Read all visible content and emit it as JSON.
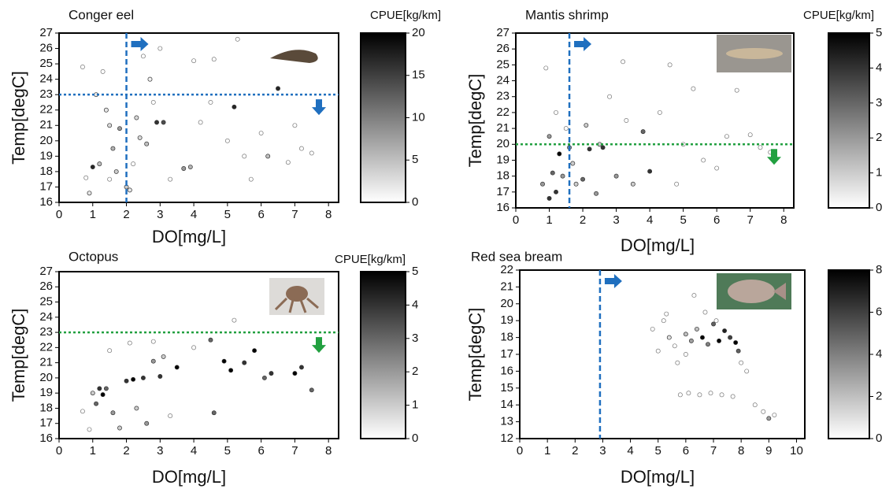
{
  "chart_data": [
    {
      "type": "scatter",
      "title": "Conger eel",
      "xlabel": "DO[mg/L]",
      "ylabel": "Temp[degC]",
      "colorbar_label": "CPUE[kg/km]",
      "xlim": [
        0,
        8.3
      ],
      "xticks": [
        0,
        1,
        2,
        3,
        4,
        5,
        6,
        7,
        8
      ],
      "ylim": [
        16,
        27
      ],
      "yticks": [
        16,
        17,
        18,
        19,
        20,
        21,
        22,
        23,
        24,
        25,
        26,
        27
      ],
      "clim": [
        0,
        20
      ],
      "cticks": [
        0,
        5,
        10,
        15,
        20
      ],
      "thresholds": [
        {
          "axis": "x",
          "value": 2,
          "color": "#1f6fbf"
        },
        {
          "axis": "y",
          "value": 23,
          "color": "#1f6fbf"
        }
      ],
      "x": [
        0.8,
        1.0,
        1.2,
        1.1,
        1.3,
        1.5,
        1.6,
        1.8,
        2.0,
        2.1,
        2.2,
        2.3,
        2.5,
        2.6,
        2.8,
        2.9,
        3.1,
        3.3,
        3.7,
        3.9,
        4.0,
        4.2,
        4.5,
        4.6,
        5.0,
        5.2,
        5.5,
        5.7,
        6.0,
        6.2,
        6.5,
        6.8,
        7.0,
        7.2,
        7.5,
        0.9,
        1.5,
        2.4,
        3.0,
        5.3,
        1.4,
        1.7,
        0.7,
        2.7
      ],
      "y": [
        17.6,
        18.3,
        18.5,
        23.0,
        24.5,
        21.0,
        19.5,
        20.8,
        17.0,
        16.8,
        18.5,
        21.5,
        25.5,
        19.8,
        22.5,
        21.2,
        21.2,
        17.5,
        18.2,
        18.3,
        25.2,
        21.2,
        22.5,
        25.3,
        20.0,
        22.2,
        19.0,
        17.5,
        20.5,
        19.0,
        23.4,
        18.6,
        21.0,
        19.5,
        19.2,
        16.6,
        17.5,
        20.2,
        26.0,
        26.6,
        22.0,
        18.0,
        24.8,
        24.0
      ],
      "cpue": [
        0,
        17,
        5,
        2,
        0,
        3,
        6,
        8,
        4,
        2,
        0,
        3,
        0,
        5,
        0,
        16,
        14,
        0,
        8,
        6,
        0,
        0,
        0,
        0,
        0,
        17,
        0,
        0,
        0,
        5,
        17,
        0,
        0,
        0,
        0,
        2,
        0,
        3,
        0,
        0,
        2,
        4,
        0,
        1
      ]
    },
    {
      "type": "scatter",
      "title": "Mantis shrimp",
      "xlabel": "DO[mg/L]",
      "ylabel": "Temp[degC]",
      "colorbar_label": "CPUE[kg/km]",
      "xlim": [
        0,
        8.3
      ],
      "xticks": [
        0,
        1,
        2,
        3,
        4,
        5,
        6,
        7,
        8
      ],
      "ylim": [
        16,
        27
      ],
      "yticks": [
        16,
        17,
        18,
        19,
        20,
        21,
        22,
        23,
        24,
        25,
        26,
        27
      ],
      "clim": [
        0,
        5
      ],
      "cticks": [
        0,
        1,
        2,
        3,
        4,
        5
      ],
      "thresholds": [
        {
          "axis": "x",
          "value": 1.6,
          "color": "#1f6fbf"
        },
        {
          "axis": "y",
          "value": 20,
          "color": "#22a040"
        }
      ],
      "x": [
        0.8,
        1.0,
        1.1,
        1.2,
        1.3,
        1.4,
        1.5,
        1.6,
        1.8,
        2.0,
        2.2,
        2.4,
        2.6,
        2.8,
        3.0,
        3.2,
        3.5,
        3.8,
        4.0,
        4.3,
        4.6,
        5.0,
        5.3,
        5.6,
        6.0,
        6.3,
        6.6,
        7.0,
        7.3,
        7.6,
        0.9,
        1.2,
        1.7,
        2.1,
        3.3,
        4.8,
        1.0,
        2.5
      ],
      "y": [
        17.5,
        16.6,
        18.2,
        17.0,
        19.4,
        18.0,
        21.0,
        19.8,
        17.5,
        17.8,
        19.7,
        16.9,
        19.8,
        23.0,
        18.0,
        25.2,
        17.5,
        20.8,
        18.3,
        22.0,
        25.0,
        20.0,
        23.5,
        19.0,
        18.5,
        20.5,
        23.4,
        20.6,
        19.8,
        19.5,
        24.8,
        22.0,
        18.8,
        21.2,
        21.5,
        17.5,
        20.5,
        20.0
      ],
      "cpue": [
        2,
        4,
        3,
        4,
        5,
        2,
        0,
        2,
        1,
        3,
        4,
        2,
        4,
        0,
        2,
        0,
        1,
        3,
        4,
        0,
        0,
        0,
        0,
        0,
        0,
        0,
        0,
        0,
        0,
        0,
        0,
        0,
        1,
        1,
        0,
        0,
        2,
        1
      ]
    },
    {
      "type": "scatter",
      "title": "Octopus",
      "xlabel": "DO[mg/L]",
      "ylabel": "Temp[degC]",
      "colorbar_label": "CPUE[kg/km]",
      "xlim": [
        0,
        8.3
      ],
      "xticks": [
        0,
        1,
        2,
        3,
        4,
        5,
        6,
        7,
        8
      ],
      "ylim": [
        16,
        27
      ],
      "yticks": [
        16,
        17,
        18,
        19,
        20,
        21,
        22,
        23,
        24,
        25,
        26,
        27
      ],
      "clim": [
        0,
        5
      ],
      "cticks": [
        0,
        1,
        2,
        3,
        4,
        5
      ],
      "thresholds": [
        {
          "axis": "y",
          "value": 23,
          "color": "#22a040"
        }
      ],
      "x": [
        0.7,
        0.9,
        1.1,
        1.2,
        1.3,
        1.4,
        1.6,
        1.8,
        2.0,
        2.2,
        2.3,
        2.5,
        2.6,
        2.8,
        3.0,
        3.3,
        3.5,
        4.5,
        4.6,
        4.9,
        5.1,
        5.5,
        5.8,
        6.1,
        6.3,
        7.0,
        7.2,
        7.5,
        1.0,
        2.1,
        2.8,
        4.0,
        5.2,
        3.1,
        1.5
      ],
      "y": [
        17.8,
        16.6,
        18.3,
        19.3,
        18.9,
        19.3,
        17.7,
        16.7,
        19.8,
        19.9,
        18.0,
        20.0,
        17.0,
        21.1,
        20.1,
        17.5,
        20.7,
        22.5,
        17.7,
        21.1,
        20.5,
        21.0,
        21.8,
        20.0,
        20.3,
        20.3,
        20.7,
        19.2,
        19.0,
        22.3,
        22.4,
        22.0,
        23.8,
        21.4,
        21.8
      ],
      "cpue": [
        0,
        0,
        3,
        4,
        5,
        3,
        2,
        1,
        4,
        5,
        1,
        4,
        2,
        2,
        4,
        0,
        5,
        3,
        3,
        5,
        5,
        4,
        5,
        3,
        4,
        5,
        4,
        3,
        1,
        0,
        0,
        0,
        0,
        1,
        0
      ]
    },
    {
      "type": "scatter",
      "title": "Red sea bream",
      "xlabel": "DO[mg/L]",
      "ylabel": "Temp[degC]",
      "xlim": [
        0,
        10.3
      ],
      "xticks": [
        0,
        1,
        2,
        3,
        4,
        5,
        6,
        7,
        8,
        9,
        10
      ],
      "ylim": [
        12,
        22
      ],
      "yticks": [
        12,
        13,
        14,
        15,
        16,
        17,
        18,
        19,
        20,
        21,
        22
      ],
      "clim": [
        0,
        8
      ],
      "cticks": [
        0,
        2,
        4,
        6,
        8
      ],
      "thresholds": [
        {
          "axis": "x",
          "value": 2.9,
          "color": "#1f6fbf"
        }
      ],
      "x": [
        4.8,
        5.0,
        5.2,
        5.4,
        5.6,
        5.8,
        6.0,
        6.2,
        6.4,
        6.6,
        6.8,
        7.0,
        7.2,
        7.4,
        7.6,
        7.8,
        8.0,
        8.2,
        8.5,
        8.8,
        9.0,
        9.2,
        5.7,
        6.1,
        6.5,
        6.9,
        7.3,
        7.7,
        6.3,
        6.7,
        7.1,
        5.3,
        7.9,
        6.0
      ],
      "y": [
        18.5,
        17.2,
        19.0,
        18.0,
        17.5,
        14.6,
        18.2,
        17.8,
        18.5,
        18.0,
        17.6,
        18.8,
        17.8,
        18.4,
        18.0,
        17.7,
        16.5,
        16.0,
        14.0,
        13.6,
        13.2,
        13.4,
        16.5,
        14.7,
        14.6,
        14.7,
        14.6,
        14.5,
        20.5,
        19.5,
        19.0,
        19.4,
        17.2,
        17.0
      ],
      "cpue": [
        0,
        0,
        0,
        1,
        0,
        0,
        2,
        3,
        2,
        8,
        4,
        5,
        8,
        7,
        6,
        8,
        0,
        0,
        0,
        0,
        3,
        0,
        0,
        0,
        0,
        0,
        0,
        0,
        0,
        0,
        0,
        0,
        5,
        0
      ]
    }
  ]
}
